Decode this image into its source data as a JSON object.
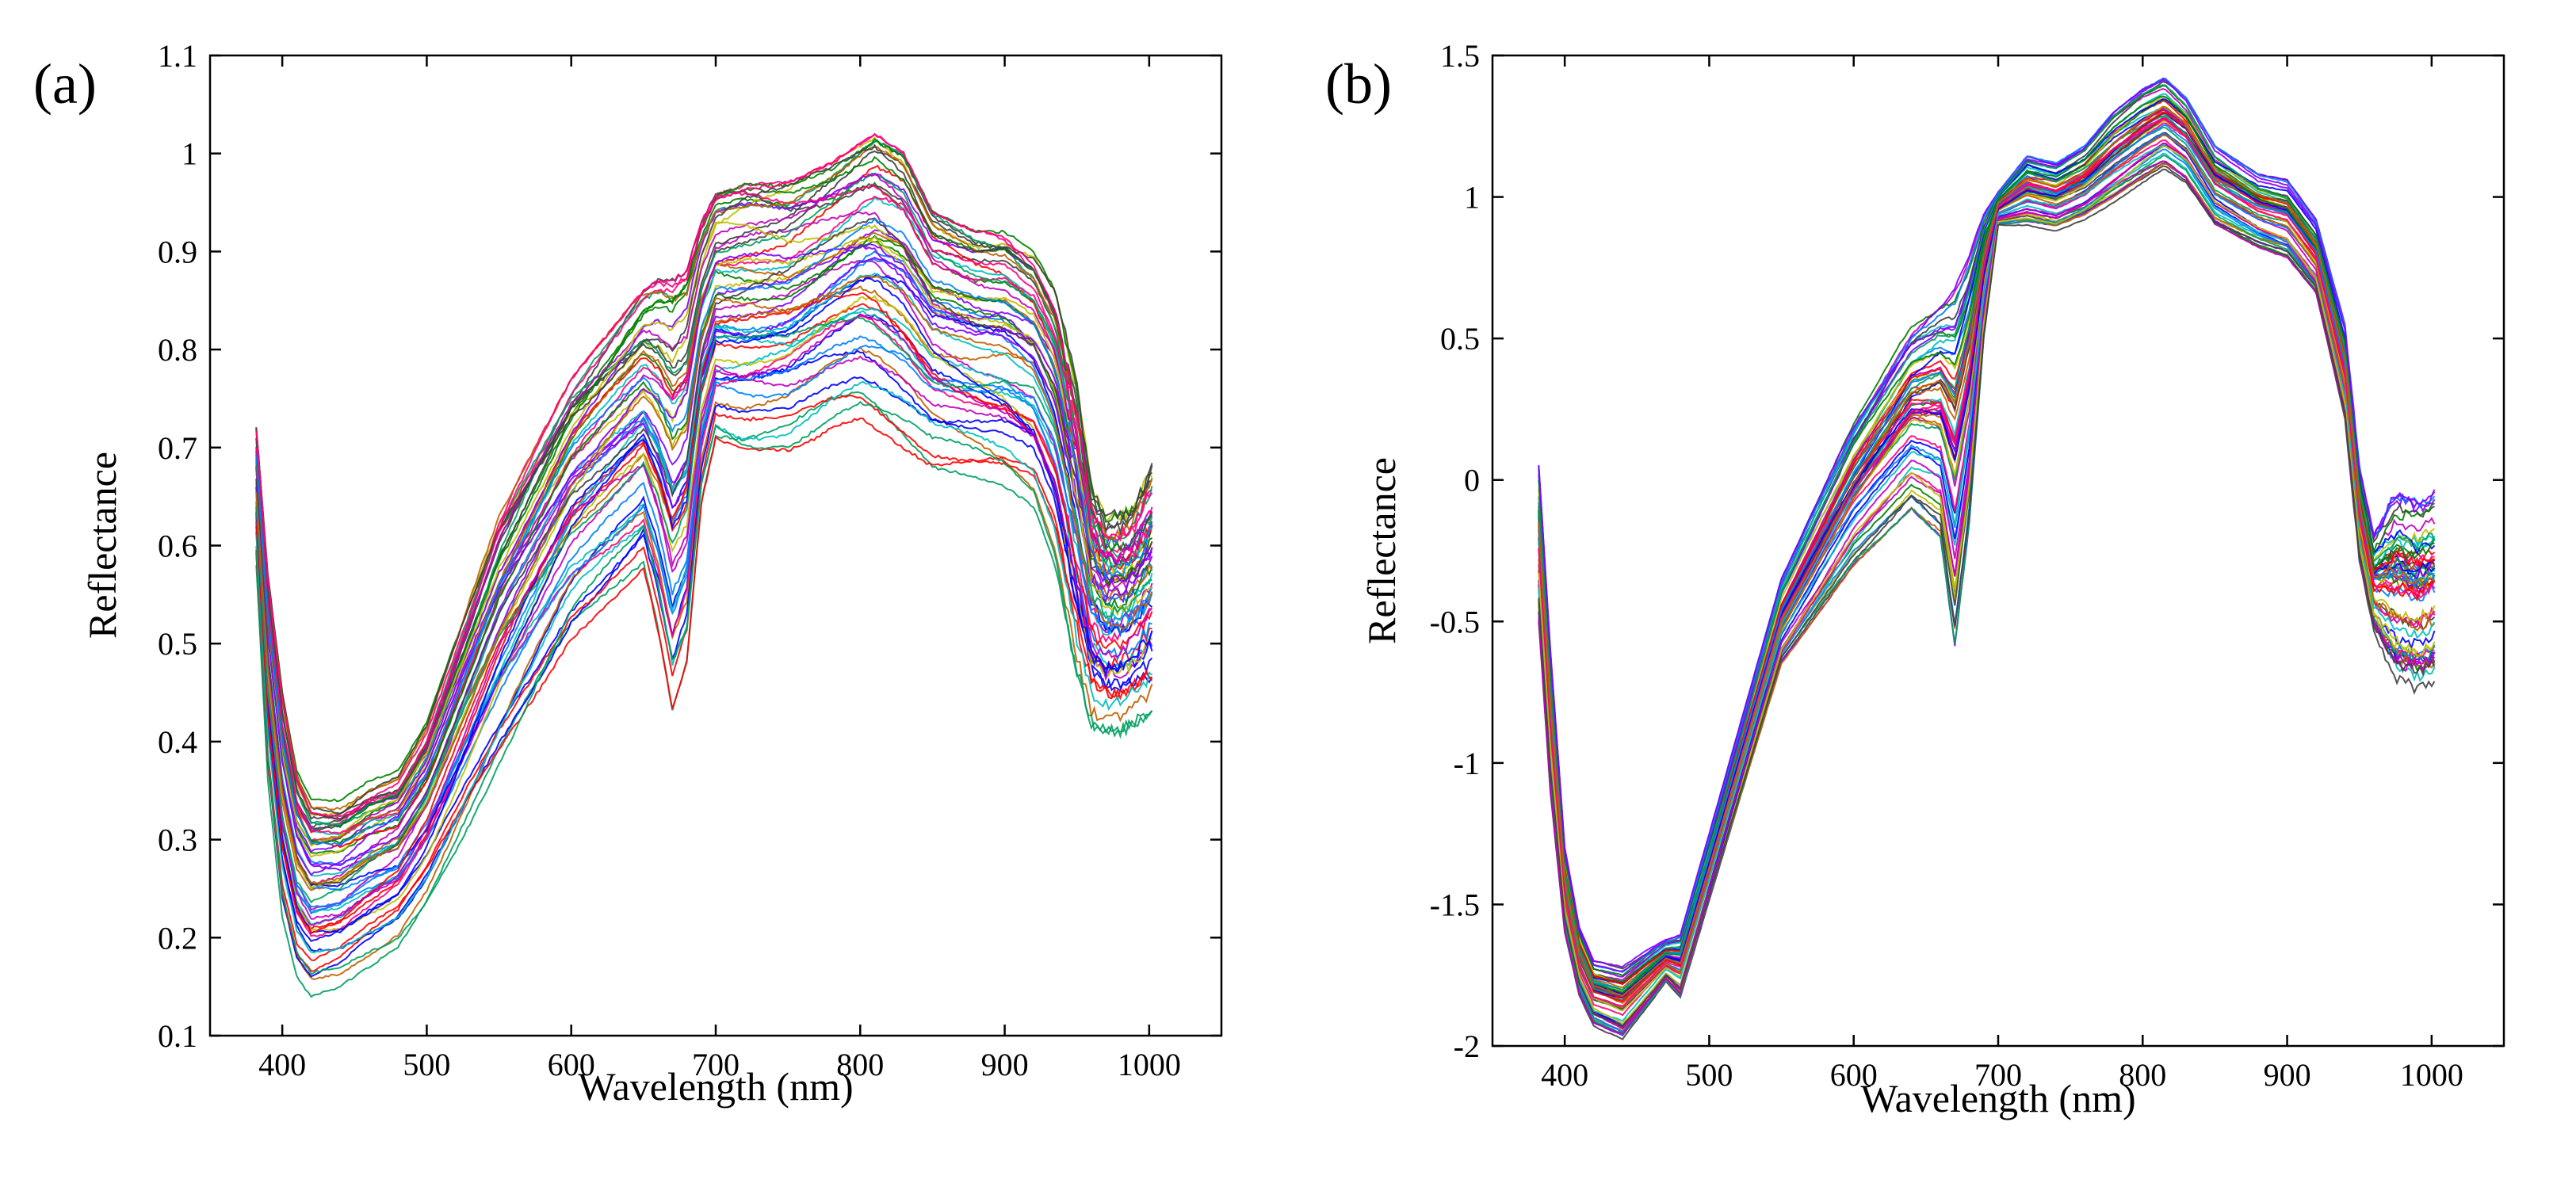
{
  "chart_data": [
    {
      "panel_label": "(a)",
      "type": "line",
      "xlabel": "Wavelength (nm)",
      "ylabel": "Reflectance",
      "xlim": [
        350,
        1050
      ],
      "ylim": [
        0.1,
        1.1
      ],
      "xticks": [
        400,
        500,
        600,
        700,
        800,
        900,
        1000
      ],
      "yticks": [
        0.1,
        0.2,
        0.3,
        0.4,
        0.5,
        0.6,
        0.7,
        0.8,
        0.9,
        1,
        1.1
      ],
      "ytick_labels": [
        "0.1",
        "0.2",
        "0.3",
        "0.4",
        "0.5",
        "0.6",
        "0.7",
        "0.8",
        "0.9",
        "1",
        "1.1"
      ],
      "grid": false,
      "series_count": 60,
      "envelope": {
        "x": [
          382,
          390,
          400,
          410,
          420,
          440,
          460,
          480,
          500,
          550,
          600,
          650,
          660,
          670,
          680,
          690,
          700,
          720,
          750,
          780,
          800,
          810,
          830,
          850,
          880,
          900,
          920,
          935,
          950,
          960,
          970,
          980,
          990,
          1003
        ],
        "lower": [
          0.58,
          0.36,
          0.22,
          0.16,
          0.14,
          0.15,
          0.17,
          0.19,
          0.23,
          0.36,
          0.49,
          0.56,
          0.49,
          0.4,
          0.45,
          0.62,
          0.69,
          0.68,
          0.69,
          0.72,
          0.73,
          0.72,
          0.7,
          0.68,
          0.67,
          0.66,
          0.64,
          0.58,
          0.47,
          0.42,
          0.41,
          0.41,
          0.42,
          0.43
        ],
        "upper": [
          0.72,
          0.57,
          0.45,
          0.37,
          0.34,
          0.34,
          0.36,
          0.37,
          0.42,
          0.63,
          0.77,
          0.86,
          0.87,
          0.87,
          0.88,
          0.93,
          0.96,
          0.97,
          0.97,
          0.99,
          1.01,
          1.02,
          1.0,
          0.94,
          0.92,
          0.92,
          0.9,
          0.86,
          0.76,
          0.66,
          0.63,
          0.63,
          0.64,
          0.68
        ]
      }
    },
    {
      "panel_label": "(b)",
      "type": "line",
      "xlabel": "Wavelength (nm)",
      "ylabel": "Reflectance",
      "xlim": [
        350,
        1050
      ],
      "ylim": [
        -2,
        1.5
      ],
      "xticks": [
        400,
        500,
        600,
        700,
        800,
        900,
        1000
      ],
      "yticks": [
        -2,
        -1.5,
        -1,
        -0.5,
        0,
        0.5,
        1,
        1.5
      ],
      "ytick_labels": [
        "-2",
        "-1.5",
        "-1",
        "-0.5",
        "0",
        "0.5",
        "1",
        "1.5"
      ],
      "grid": false,
      "series_count": 60,
      "envelope": {
        "x": [
          382,
          390,
          400,
          410,
          420,
          440,
          460,
          470,
          480,
          500,
          550,
          600,
          640,
          660,
          670,
          680,
          690,
          700,
          720,
          740,
          760,
          780,
          800,
          815,
          830,
          850,
          880,
          900,
          920,
          940,
          950,
          960,
          975,
          990,
          1003
        ],
        "lower": [
          -0.5,
          -1.1,
          -1.6,
          -1.82,
          -1.93,
          -1.98,
          -1.85,
          -1.78,
          -1.84,
          -1.5,
          -0.65,
          -0.3,
          -0.1,
          -0.2,
          -0.58,
          -0.15,
          0.5,
          0.9,
          0.9,
          0.88,
          0.92,
          0.98,
          1.05,
          1.1,
          1.05,
          0.9,
          0.82,
          0.78,
          0.65,
          0.2,
          -0.3,
          -0.55,
          -0.72,
          -0.75,
          -0.72
        ],
        "upper": [
          0.05,
          -0.6,
          -1.3,
          -1.58,
          -1.7,
          -1.72,
          -1.65,
          -1.62,
          -1.6,
          -1.25,
          -0.35,
          0.2,
          0.55,
          0.65,
          0.72,
          0.82,
          0.95,
          1.02,
          1.15,
          1.12,
          1.18,
          1.3,
          1.38,
          1.42,
          1.35,
          1.18,
          1.08,
          1.06,
          0.92,
          0.55,
          0.05,
          -0.2,
          -0.05,
          -0.08,
          -0.05
        ]
      }
    }
  ],
  "palette": [
    "#0000ff",
    "#ff0000",
    "#008000",
    "#00bfbf",
    "#bf00bf",
    "#bfbf00",
    "#404040",
    "#8000ff",
    "#0080ff",
    "#ff0080",
    "#00a060",
    "#c06000"
  ]
}
